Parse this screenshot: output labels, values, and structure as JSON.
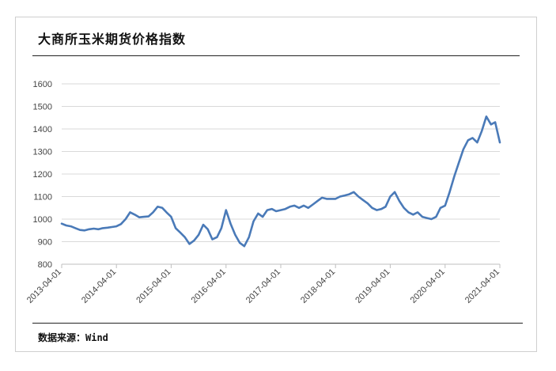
{
  "title": "大商所玉米期货价格指数",
  "source": "数据来源：Wind",
  "colors": {
    "line": "#4a7ab8",
    "grid": "#d9d9d9",
    "axis": "#bfbfbf",
    "text": "#444444"
  },
  "chart_data": {
    "type": "line",
    "title": "大商所玉米期货价格指数",
    "xlabel": "",
    "ylabel": "",
    "ylim": [
      800,
      1600
    ],
    "yticks": [
      800,
      900,
      1000,
      1100,
      1200,
      1300,
      1400,
      1500,
      1600
    ],
    "xlim": [
      "2013-04-01",
      "2021-04-01"
    ],
    "xticks": [
      "2013-04-01",
      "2014-04-01",
      "2015-04-01",
      "2016-04-01",
      "2017-04-01",
      "2018-04-01",
      "2019-04-01",
      "2020-04-01",
      "2021-04-01"
    ],
    "grid": "horizontal",
    "legend": "none",
    "series": [
      {
        "x": [
          "2013-04-01",
          "2013-05-01",
          "2013-06-01",
          "2013-07-01",
          "2013-08-01",
          "2013-09-01",
          "2013-10-01",
          "2013-11-01",
          "2013-12-01",
          "2014-01-01",
          "2014-02-01",
          "2014-03-01",
          "2014-04-01",
          "2014-05-01",
          "2014-06-01",
          "2014-07-01",
          "2014-08-01",
          "2014-09-01",
          "2014-10-01",
          "2014-11-01",
          "2014-12-01",
          "2015-01-01",
          "2015-02-01",
          "2015-03-01",
          "2015-04-01",
          "2015-05-01",
          "2015-06-01",
          "2015-07-01",
          "2015-08-01",
          "2015-09-01",
          "2015-10-01",
          "2015-11-01",
          "2015-12-01",
          "2016-01-01",
          "2016-02-01",
          "2016-03-01",
          "2016-04-01",
          "2016-05-01",
          "2016-06-01",
          "2016-07-01",
          "2016-08-01",
          "2016-09-01",
          "2016-10-01",
          "2016-11-01",
          "2016-12-01",
          "2017-01-01",
          "2017-02-01",
          "2017-03-01",
          "2017-04-01",
          "2017-05-01",
          "2017-06-01",
          "2017-07-01",
          "2017-08-01",
          "2017-09-01",
          "2017-10-01",
          "2017-11-01",
          "2017-12-01",
          "2018-01-01",
          "2018-02-01",
          "2018-03-01",
          "2018-04-01",
          "2018-05-01",
          "2018-06-01",
          "2018-07-01",
          "2018-08-01",
          "2018-09-01",
          "2018-10-01",
          "2018-11-01",
          "2018-12-01",
          "2019-01-01",
          "2019-02-01",
          "2019-03-01",
          "2019-04-01",
          "2019-05-01",
          "2019-06-01",
          "2019-07-01",
          "2019-08-01",
          "2019-09-01",
          "2019-10-01",
          "2019-11-01",
          "2019-12-01",
          "2020-01-01",
          "2020-02-01",
          "2020-03-01",
          "2020-04-01",
          "2020-05-01",
          "2020-06-01",
          "2020-07-01",
          "2020-08-01",
          "2020-09-01",
          "2020-10-01",
          "2020-11-01",
          "2020-12-01",
          "2021-01-01",
          "2021-02-01",
          "2021-03-01",
          "2021-04-01"
        ],
        "values": [
          980,
          972,
          968,
          960,
          952,
          950,
          955,
          958,
          955,
          960,
          962,
          965,
          968,
          978,
          1000,
          1030,
          1020,
          1008,
          1010,
          1012,
          1030,
          1055,
          1050,
          1030,
          1010,
          960,
          940,
          920,
          890,
          905,
          930,
          975,
          955,
          910,
          920,
          960,
          1040,
          980,
          930,
          895,
          880,
          920,
          990,
          1025,
          1010,
          1040,
          1045,
          1035,
          1040,
          1045,
          1055,
          1060,
          1050,
          1060,
          1050,
          1065,
          1080,
          1095,
          1090,
          1090,
          1090,
          1100,
          1105,
          1110,
          1120,
          1100,
          1085,
          1070,
          1050,
          1040,
          1045,
          1055,
          1100,
          1120,
          1080,
          1050,
          1030,
          1020,
          1030,
          1010,
          1005,
          1000,
          1010,
          1050,
          1060,
          1120,
          1190,
          1250,
          1310,
          1350,
          1360,
          1340,
          1390,
          1455,
          1420,
          1430,
          1340
        ]
      }
    ]
  }
}
